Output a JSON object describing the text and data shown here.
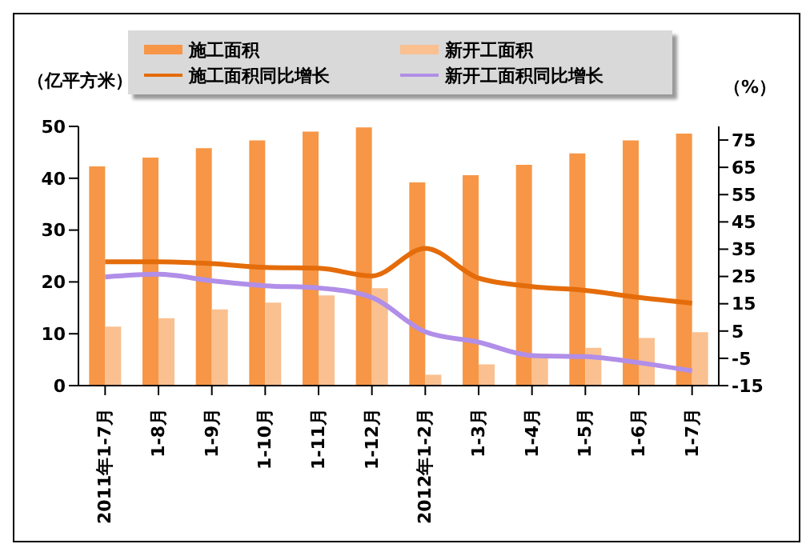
{
  "chart_data": {
    "type": "bar",
    "ylabel": "（亿平方米）",
    "y2label": "（%）",
    "categories": [
      "2011年1-7月",
      "1-8月",
      "1-9月",
      "1-10月",
      "1-11月",
      "1-12月",
      "2012年1-2月",
      "1-3月",
      "1-4月",
      "1-5月",
      "1-6月",
      "1-7月"
    ],
    "series": [
      {
        "name": "施工面积",
        "color": "#f79646",
        "values": [
          42.3,
          44,
          45.8,
          47.3,
          49,
          49.8,
          39.2,
          40.6,
          42.6,
          44.8,
          47.3,
          48.6
        ]
      },
      {
        "name": "新开工面积",
        "color": "#fac090",
        "values": [
          11.4,
          13,
          14.7,
          16,
          17.4,
          18.8,
          2.1,
          4.1,
          5.6,
          7.3,
          9.2,
          10.3
        ]
      },
      {
        "name": "施工面积同比增长",
        "type": "line",
        "axis": "y2",
        "color": "#e46c0a",
        "values": [
          30.4,
          30.4,
          29.7,
          28.3,
          28,
          25.2,
          35.3,
          24.4,
          21.3,
          19.9,
          17.3,
          15.2
        ]
      },
      {
        "name": "新开工面积同比增长",
        "type": "line",
        "axis": "y2",
        "color": "#b18ee8",
        "values": [
          24.8,
          25.8,
          23.4,
          21.6,
          20.8,
          17.3,
          4.7,
          0.9,
          -4,
          -4.4,
          -6.6,
          -9.6
        ]
      }
    ],
    "ylim": [
      0,
      50
    ],
    "yticks": [
      0,
      10,
      20,
      30,
      40,
      50
    ],
    "y2lim": [
      -15,
      80
    ],
    "y2ticks": [
      -15,
      -5,
      5,
      15,
      25,
      35,
      45,
      55,
      65,
      75
    ],
    "grid": false,
    "legend": "top",
    "marker": "none"
  }
}
